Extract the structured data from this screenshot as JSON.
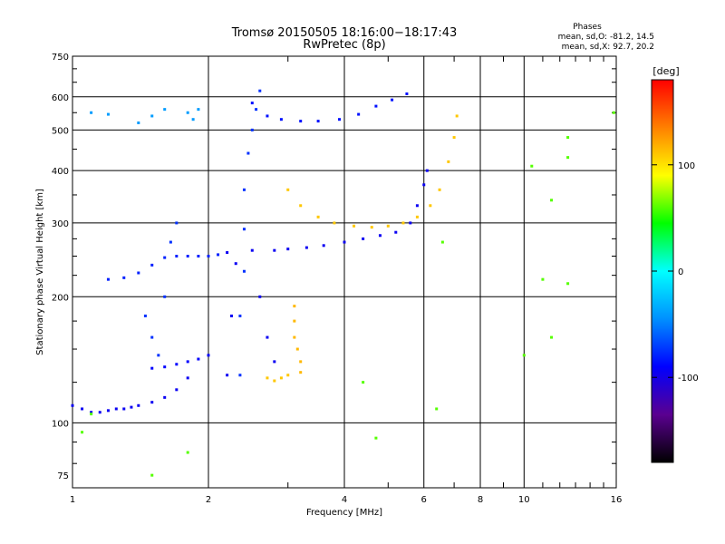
{
  "header": {
    "title_line1": "Tromsø 20150505 18:16:00−18:17:43",
    "title_line2": "RwPretec (8p)"
  },
  "stats": {
    "label": "Phases",
    "line_o": "mean, sd,O:  -81.2, 14.5",
    "line_x": "mean, sd,X:  92.7, 20.2"
  },
  "chart_data": {
    "type": "scatter",
    "xlabel": "Frequency [MHz]",
    "ylabel": "Stationary phase Virtual Height [km]",
    "xscale": "log",
    "yscale": "log",
    "xlim": [
      1,
      16
    ],
    "ylim": [
      70,
      750
    ],
    "xticks": [
      1,
      2,
      4,
      6,
      8,
      10,
      16
    ],
    "yticks": [
      75,
      100,
      200,
      300,
      400,
      500,
      600,
      750
    ],
    "grid": true,
    "colorbar": {
      "label": "[deg]",
      "min": -180,
      "max": 180,
      "ticks": [
        100,
        0,
        -100
      ],
      "colors": [
        "#000000",
        "#5a0090",
        "#0000ff",
        "#0090ff",
        "#00ffff",
        "#00ff00",
        "#ffff00",
        "#ff8000",
        "#ff0000"
      ]
    },
    "series": [
      {
        "values": [
          [
            1.0,
            110
          ],
          [
            1.05,
            108
          ],
          [
            1.1,
            106
          ],
          [
            1.15,
            106
          ],
          [
            1.2,
            107
          ],
          [
            1.25,
            108
          ],
          [
            1.3,
            108
          ],
          [
            1.35,
            109
          ],
          [
            1.4,
            110
          ],
          [
            1.5,
            112
          ],
          [
            1.6,
            115
          ],
          [
            1.7,
            120
          ],
          [
            1.8,
            128
          ]
        ],
        "phase": -95
      },
      {
        "values": [
          [
            1.5,
            135
          ],
          [
            1.6,
            136
          ],
          [
            1.7,
            138
          ],
          [
            1.8,
            140
          ],
          [
            1.9,
            142
          ],
          [
            2.0,
            145
          ]
        ],
        "phase": -90
      },
      {
        "values": [
          [
            1.2,
            220
          ],
          [
            1.3,
            222
          ],
          [
            1.4,
            228
          ],
          [
            1.5,
            238
          ],
          [
            1.6,
            248
          ],
          [
            1.7,
            250
          ],
          [
            1.8,
            250
          ],
          [
            1.9,
            250
          ],
          [
            2.0,
            250
          ],
          [
            2.1,
            252
          ]
        ],
        "phase": -80
      },
      {
        "values": [
          [
            2.2,
            255
          ],
          [
            2.5,
            258
          ],
          [
            2.8,
            258
          ],
          [
            3.0,
            260
          ],
          [
            3.3,
            262
          ],
          [
            3.6,
            265
          ],
          [
            4.0,
            270
          ],
          [
            4.4,
            275
          ],
          [
            4.8,
            280
          ],
          [
            5.2,
            285
          ],
          [
            5.6,
            300
          ],
          [
            5.8,
            330
          ],
          [
            6.0,
            370
          ],
          [
            6.1,
            400
          ]
        ],
        "phase": -95
      },
      {
        "values": [
          [
            3.0,
            360
          ],
          [
            3.2,
            330
          ],
          [
            3.5,
            310
          ],
          [
            3.8,
            300
          ],
          [
            4.2,
            295
          ],
          [
            4.6,
            293
          ],
          [
            5.0,
            295
          ],
          [
            5.4,
            300
          ],
          [
            5.8,
            310
          ],
          [
            6.2,
            330
          ],
          [
            6.5,
            360
          ],
          [
            6.8,
            420
          ],
          [
            7.0,
            480
          ],
          [
            7.1,
            540
          ]
        ],
        "phase": 110
      },
      {
        "values": [
          [
            2.5,
            580
          ],
          [
            2.7,
            540
          ],
          [
            2.9,
            530
          ],
          [
            3.2,
            525
          ],
          [
            3.5,
            525
          ],
          [
            3.9,
            530
          ],
          [
            4.3,
            545
          ],
          [
            4.7,
            570
          ],
          [
            5.1,
            590
          ],
          [
            5.5,
            610
          ]
        ],
        "phase": -85
      },
      {
        "values": [
          [
            3.1,
            190
          ],
          [
            3.1,
            175
          ],
          [
            3.1,
            160
          ],
          [
            3.15,
            150
          ],
          [
            3.2,
            140
          ],
          [
            3.2,
            132
          ]
        ],
        "phase": 115
      },
      {
        "values": [
          [
            2.7,
            128
          ],
          [
            2.8,
            126
          ],
          [
            2.9,
            128
          ],
          [
            3.0,
            130
          ]
        ],
        "phase": 110
      },
      {
        "values": [
          [
            2.35,
            130
          ],
          [
            2.35,
            180
          ],
          [
            2.4,
            230
          ],
          [
            2.4,
            290
          ],
          [
            2.4,
            360
          ],
          [
            2.45,
            440
          ],
          [
            2.5,
            500
          ],
          [
            2.55,
            560
          ],
          [
            2.6,
            620
          ]
        ],
        "phase": -75
      },
      {
        "values": [
          [
            2.2,
            130
          ],
          [
            2.25,
            180
          ],
          [
            2.3,
            240
          ],
          [
            2.6,
            200
          ],
          [
            2.7,
            160
          ],
          [
            2.8,
            140
          ]
        ],
        "phase": -95
      },
      {
        "values": [
          [
            1.45,
            180
          ],
          [
            1.5,
            160
          ],
          [
            1.55,
            145
          ],
          [
            1.6,
            200
          ],
          [
            1.65,
            270
          ],
          [
            1.7,
            300
          ]
        ],
        "phase": -75
      },
      {
        "values": [
          [
            1.1,
            550
          ],
          [
            1.2,
            545
          ],
          [
            1.4,
            520
          ],
          [
            1.5,
            540
          ],
          [
            1.6,
            560
          ],
          [
            1.8,
            550
          ],
          [
            1.9,
            560
          ],
          [
            1.85,
            530
          ]
        ],
        "phase": -40
      },
      {
        "values": [
          [
            10.4,
            410
          ],
          [
            11.5,
            340
          ],
          [
            11.5,
            160
          ],
          [
            12.5,
            480
          ],
          [
            12.5,
            430
          ],
          [
            12.5,
            215
          ],
          [
            11.0,
            220
          ],
          [
            10.0,
            145
          ],
          [
            15.8,
            550
          ],
          [
            6.4,
            108
          ],
          [
            6.6,
            270
          ],
          [
            4.7,
            92
          ],
          [
            4.4,
            125
          ],
          [
            1.05,
            95
          ],
          [
            1.1,
            105
          ],
          [
            1.5,
            75
          ],
          [
            1.8,
            85
          ]
        ],
        "phase": 60
      }
    ]
  }
}
